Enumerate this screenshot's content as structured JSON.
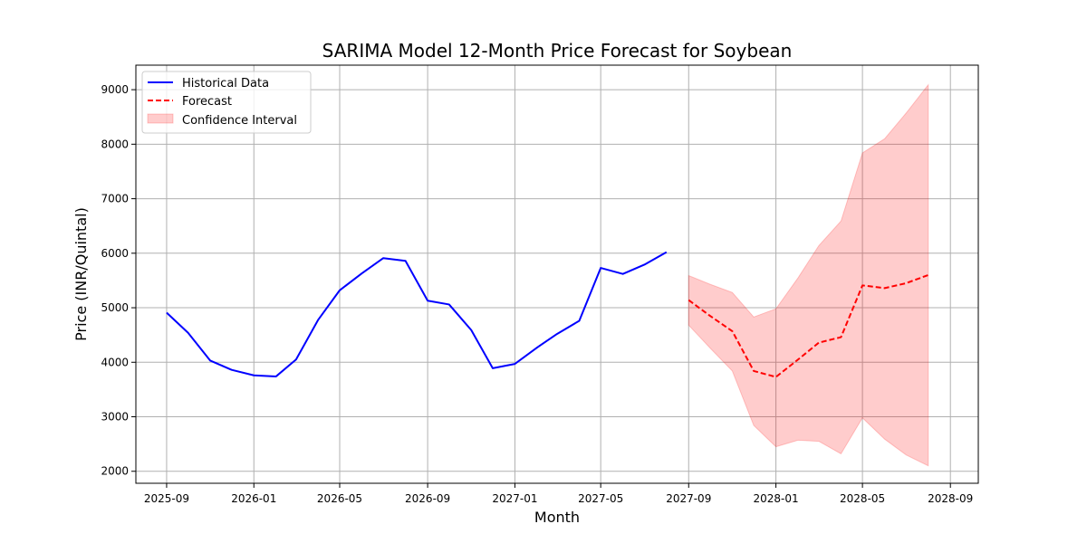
{
  "chart_data": {
    "type": "line",
    "title": "SARIMA Model 12-Month Price Forecast for Soybean",
    "xlabel": "Month",
    "ylabel": "Price (INR/Quintal)",
    "ylim": [
      1780,
      9450
    ],
    "xlim": [
      "2025-07-20",
      "2028-10-10"
    ],
    "grid": true,
    "legend_position": "top-left",
    "x_ticks": [
      "2025-09",
      "2026-01",
      "2026-05",
      "2026-09",
      "2027-01",
      "2027-05",
      "2027-09",
      "2028-01",
      "2028-05",
      "2028-09"
    ],
    "y_ticks": [
      2000,
      3000,
      4000,
      5000,
      6000,
      7000,
      8000,
      9000
    ],
    "colors": {
      "historical": "#0000ff",
      "forecast": "#ff0000",
      "ci_fill": "#ff0000",
      "ci_alpha": 0.2,
      "grid": "#b0b0b0"
    },
    "series": [
      {
        "name": "Historical Data",
        "style": "solid",
        "x": [
          "2025-09",
          "2025-10",
          "2025-11",
          "2025-12",
          "2026-01",
          "2026-02",
          "2026-03",
          "2026-04",
          "2026-05",
          "2026-06",
          "2026-07",
          "2026-08",
          "2026-09",
          "2026-10",
          "2026-11",
          "2026-12",
          "2027-01",
          "2027-02",
          "2027-03",
          "2027-04",
          "2027-05",
          "2027-06",
          "2027-07",
          "2027-08"
        ],
        "values": [
          4910,
          4540,
          4030,
          3860,
          3760,
          3740,
          4050,
          4780,
          5320,
          5630,
          5910,
          5860,
          5130,
          5060,
          4590,
          3890,
          3970,
          4270,
          4520,
          4760,
          5730,
          5620,
          5790,
          6020
        ]
      },
      {
        "name": "Forecast",
        "style": "dashed",
        "x": [
          "2027-09",
          "2027-10",
          "2027-11",
          "2027-12",
          "2028-01",
          "2028-02",
          "2028-03",
          "2028-04",
          "2028-05",
          "2028-06",
          "2028-07",
          "2028-08"
        ],
        "values": [
          5140,
          4850,
          4570,
          3840,
          3730,
          4050,
          4360,
          4460,
          5410,
          5360,
          5450,
          5600
        ]
      }
    ],
    "confidence_interval": {
      "name": "Confidence Interval",
      "x": [
        "2027-09",
        "2027-10",
        "2027-11",
        "2027-12",
        "2028-01",
        "2028-02",
        "2028-03",
        "2028-04",
        "2028-05",
        "2028-06",
        "2028-07",
        "2028-08"
      ],
      "lower": [
        4680,
        4260,
        3840,
        2840,
        2450,
        2570,
        2550,
        2320,
        2980,
        2590,
        2300,
        2100
      ],
      "upper": [
        5590,
        5430,
        5280,
        4830,
        4980,
        5550,
        6140,
        6590,
        7840,
        8100,
        8570,
        9090
      ]
    }
  }
}
